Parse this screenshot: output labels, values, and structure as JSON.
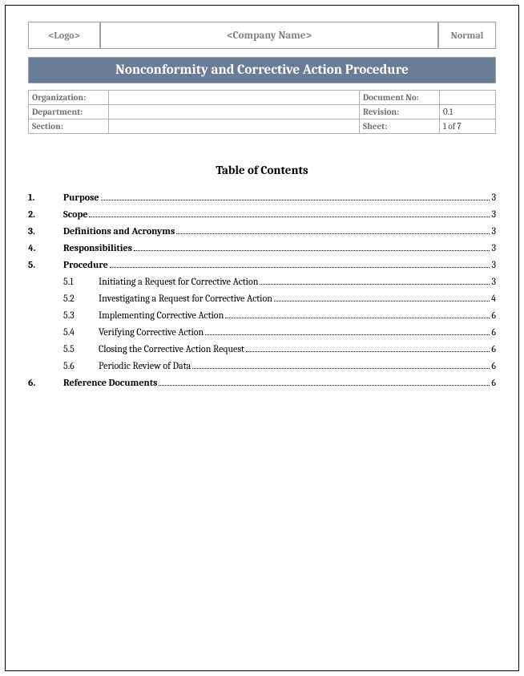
{
  "header": {
    "logo_placeholder": "<Logo>",
    "company_placeholder": "<Company Name>",
    "template_label": "Normal"
  },
  "title": "Nonconformity and Corrective Action Procedure",
  "meta": {
    "rows": [
      {
        "label1": "Organization:",
        "value1": "",
        "label2": "Document No:",
        "value2": ""
      },
      {
        "label1": "Department:",
        "value1": "",
        "label2": "Revision:",
        "value2": "0.1"
      },
      {
        "label1": "Section:",
        "value1": "",
        "label2": "Sheet:",
        "value2": "1 of 7"
      }
    ]
  },
  "toc_title": "Table of Contents",
  "toc": [
    {
      "num": "1.",
      "label": "Purpose",
      "page": "3",
      "sub": false
    },
    {
      "num": "2.",
      "label": "Scope",
      "page": "3",
      "sub": false
    },
    {
      "num": "3.",
      "label": "Definitions and Acronyms",
      "page": "3",
      "sub": false
    },
    {
      "num": "4.",
      "label": "Responsibilities",
      "page": "3",
      "sub": false
    },
    {
      "num": "5.",
      "label": "Procedure",
      "page": "3",
      "sub": false
    },
    {
      "num": "5.1",
      "label": "Initiating a Request for Corrective Action",
      "page": "3",
      "sub": true
    },
    {
      "num": "5.2",
      "label": "Investigating a Request for Corrective Action",
      "page": "4",
      "sub": true
    },
    {
      "num": "5.3",
      "label": "Implementing Corrective Action",
      "page": "6",
      "sub": true
    },
    {
      "num": "5.4",
      "label": "Verifying Corrective Action",
      "page": "6",
      "sub": true
    },
    {
      "num": "5.5",
      "label": "Closing the Corrective Action Request",
      "page": "6",
      "sub": true
    },
    {
      "num": "5.6",
      "label": "Periodic Review of Data",
      "page": "6",
      "sub": true
    },
    {
      "num": "6.",
      "label": "Reference Documents",
      "page": "6",
      "sub": false
    }
  ]
}
